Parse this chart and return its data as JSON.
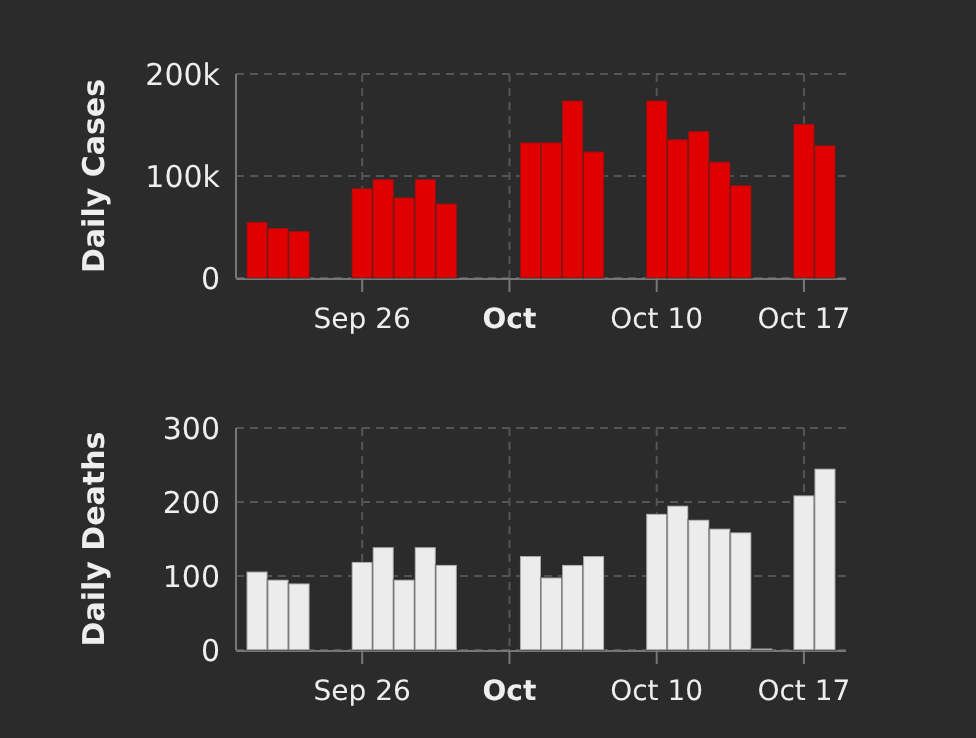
{
  "chart_data": [
    {
      "type": "bar",
      "ylabel": "Daily Cases",
      "x": [
        "--09-21",
        "--09-22",
        "--09-23",
        "--09-24",
        "--09-25",
        "--09-26",
        "--09-27",
        "--09-28",
        "--09-29",
        "--09-30",
        "--10-01",
        "--10-02",
        "--10-03",
        "--10-04",
        "--10-05",
        "--10-06",
        "--10-07",
        "--10-08",
        "--10-09",
        "--10-10",
        "--10-11",
        "--10-12",
        "--10-13",
        "--10-14",
        "--10-15",
        "--10-16",
        "--10-17",
        "--10-18"
      ],
      "values": [
        55000,
        49000,
        46000,
        null,
        null,
        88000,
        97000,
        79000,
        97000,
        73000,
        null,
        null,
        null,
        133000,
        133000,
        174000,
        124000,
        null,
        null,
        174000,
        136000,
        144000,
        114000,
        91000,
        null,
        null,
        151000,
        130000
      ],
      "color": "#e00000",
      "xlim": [
        "--09-20",
        "--10-19"
      ],
      "xticks": [
        {
          "value": "--09-26",
          "label": "Sep 26"
        },
        {
          "value": "--10-03",
          "label": "Oct"
        },
        {
          "value": "--10-10",
          "label": "Oct 10"
        },
        {
          "value": "--10-17",
          "label": "Oct 17"
        }
      ],
      "ylim": [
        0,
        200000
      ],
      "yticks": [
        {
          "value": 0,
          "label": "0"
        },
        {
          "value": 100000,
          "label": "100k"
        },
        {
          "value": 200000,
          "label": "200k"
        }
      ],
      "grid": true
    },
    {
      "type": "bar",
      "ylabel": "Daily Deaths",
      "x": [
        "--09-21",
        "--09-22",
        "--09-23",
        "--09-24",
        "--09-25",
        "--09-26",
        "--09-27",
        "--09-28",
        "--09-29",
        "--09-30",
        "--10-01",
        "--10-02",
        "--10-03",
        "--10-04",
        "--10-05",
        "--10-06",
        "--10-07",
        "--10-08",
        "--10-09",
        "--10-10",
        "--10-11",
        "--10-12",
        "--10-13",
        "--10-14",
        "--10-15",
        "--10-16",
        "--10-17",
        "--10-18"
      ],
      "values": [
        106,
        95,
        90,
        null,
        null,
        119,
        139,
        95,
        139,
        115,
        null,
        null,
        null,
        127,
        98,
        115,
        127,
        null,
        null,
        184,
        195,
        176,
        164,
        159,
        2,
        null,
        209,
        245
      ],
      "color": "#ececec",
      "xlim": [
        "--09-20",
        "--10-19"
      ],
      "xticks": [
        {
          "value": "--09-26",
          "label": "Sep 26"
        },
        {
          "value": "--10-03",
          "label": "Oct"
        },
        {
          "value": "--10-10",
          "label": "Oct 10"
        },
        {
          "value": "--10-17",
          "label": "Oct 17"
        }
      ],
      "ylim": [
        0,
        300
      ],
      "yticks": [
        0,
        100,
        200,
        300
      ],
      "grid": true
    }
  ]
}
